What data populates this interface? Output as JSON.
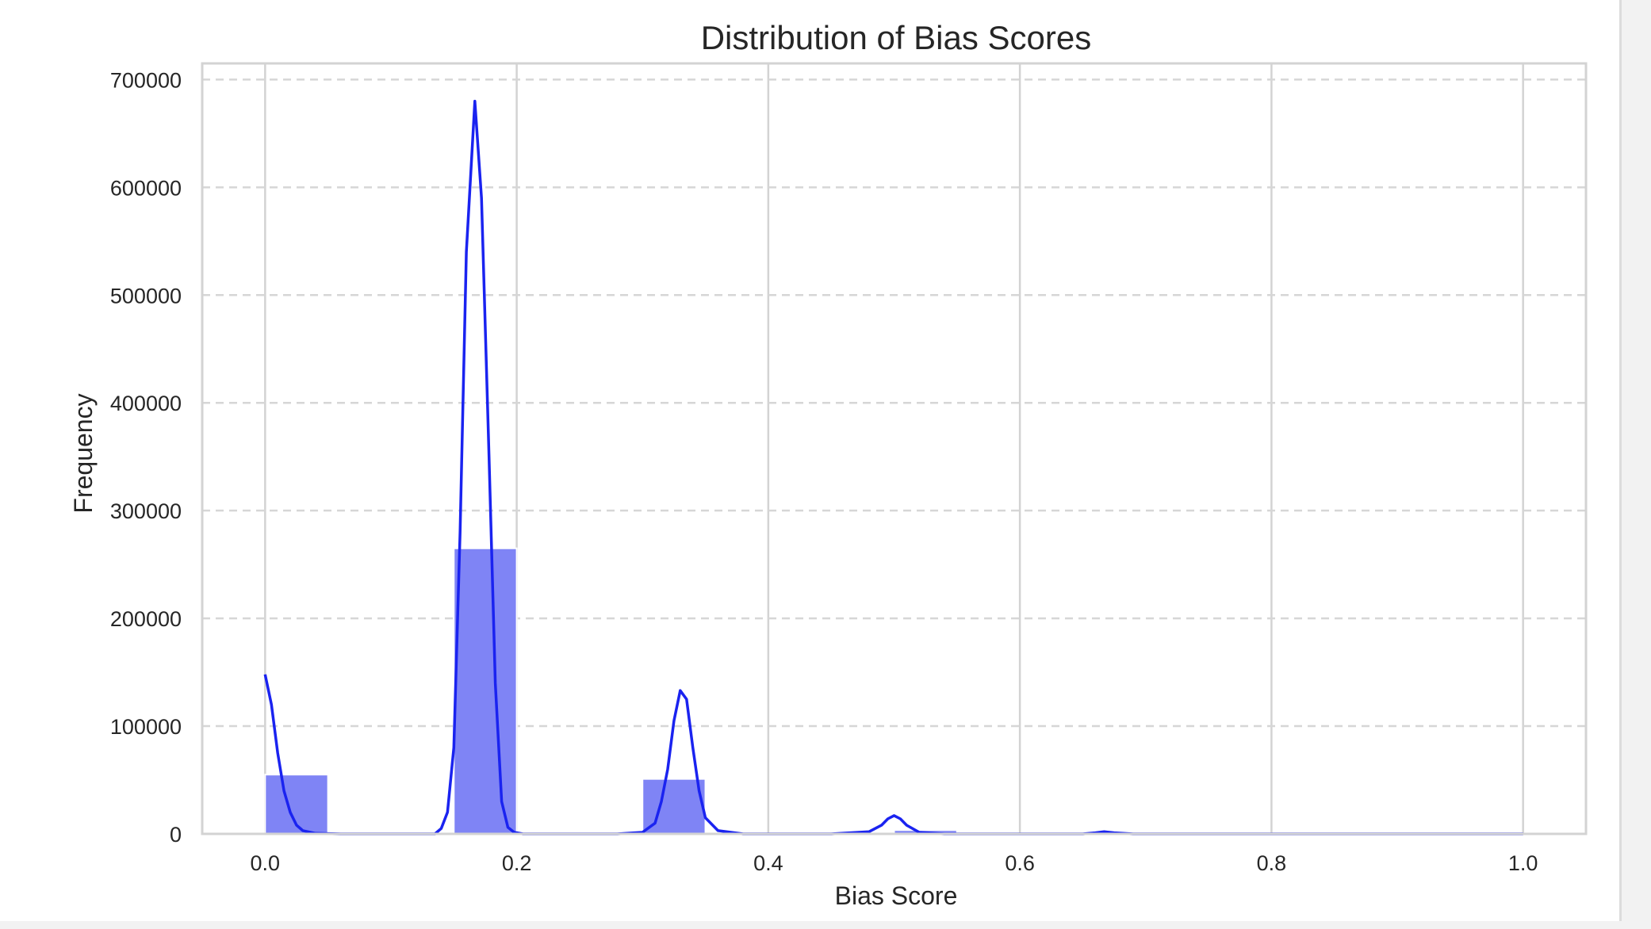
{
  "chart_data": {
    "type": "bar",
    "title": "Distribution of Bias Scores",
    "xlabel": "Bias Score",
    "ylabel": "Frequency",
    "xlim": [
      -0.05,
      1.05
    ],
    "ylim": [
      0,
      715000
    ],
    "x_ticks": [
      "0.0",
      "0.2",
      "0.4",
      "0.6",
      "0.8",
      "1.0"
    ],
    "x_tick_values": [
      0.0,
      0.2,
      0.4,
      0.6,
      0.8,
      1.0
    ],
    "y_ticks": [
      "0",
      "100000",
      "200000",
      "300000",
      "400000",
      "500000",
      "600000",
      "700000"
    ],
    "y_tick_values": [
      0,
      100000,
      200000,
      300000,
      400000,
      500000,
      600000,
      700000
    ],
    "grid": {
      "x": "solid",
      "y": "dashed"
    },
    "bar_color": "#7f84f5",
    "kde_color": "#1a23f0",
    "bins": [
      {
        "x0": 0.0,
        "x1": 0.05,
        "value": 55000
      },
      {
        "x0": 0.05,
        "x1": 0.1,
        "value": 0
      },
      {
        "x0": 0.1,
        "x1": 0.15,
        "value": 0
      },
      {
        "x0": 0.15,
        "x1": 0.2,
        "value": 265000
      },
      {
        "x0": 0.2,
        "x1": 0.25,
        "value": 0
      },
      {
        "x0": 0.25,
        "x1": 0.3,
        "value": 0
      },
      {
        "x0": 0.3,
        "x1": 0.35,
        "value": 51000
      },
      {
        "x0": 0.35,
        "x1": 0.4,
        "value": 0
      },
      {
        "x0": 0.4,
        "x1": 0.45,
        "value": 0
      },
      {
        "x0": 0.45,
        "x1": 0.5,
        "value": 0
      },
      {
        "x0": 0.5,
        "x1": 0.55,
        "value": 3500
      },
      {
        "x0": 0.55,
        "x1": 0.6,
        "value": 0
      },
      {
        "x0": 0.6,
        "x1": 0.65,
        "value": 0
      },
      {
        "x0": 0.65,
        "x1": 0.7,
        "value": 700
      },
      {
        "x0": 0.7,
        "x1": 0.75,
        "value": 0
      },
      {
        "x0": 0.75,
        "x1": 0.8,
        "value": 0
      },
      {
        "x0": 0.8,
        "x1": 0.85,
        "value": 0
      },
      {
        "x0": 0.85,
        "x1": 0.9,
        "value": 0
      },
      {
        "x0": 0.9,
        "x1": 0.95,
        "value": 0
      },
      {
        "x0": 0.95,
        "x1": 1.0,
        "value": 200
      }
    ],
    "kde_curve": {
      "x": [
        0.0,
        0.005,
        0.01,
        0.015,
        0.02,
        0.025,
        0.03,
        0.04,
        0.06,
        0.1,
        0.135,
        0.14,
        0.145,
        0.15,
        0.155,
        0.16,
        0.1667,
        0.172,
        0.178,
        0.183,
        0.188,
        0.193,
        0.198,
        0.205,
        0.22,
        0.28,
        0.3,
        0.31,
        0.315,
        0.32,
        0.325,
        0.33,
        0.335,
        0.34,
        0.345,
        0.35,
        0.36,
        0.38,
        0.45,
        0.48,
        0.49,
        0.495,
        0.5,
        0.505,
        0.51,
        0.52,
        0.54,
        0.6,
        0.65,
        0.66,
        0.667,
        0.675,
        0.69,
        0.75,
        1.0
      ],
      "y": [
        148000,
        120000,
        75000,
        40000,
        20000,
        8000,
        3000,
        500,
        0,
        0,
        0,
        5000,
        20000,
        80000,
        280000,
        540000,
        680000,
        590000,
        350000,
        140000,
        30000,
        6000,
        1500,
        0,
        0,
        0,
        1500,
        10000,
        30000,
        60000,
        105000,
        133000,
        125000,
        80000,
        40000,
        15000,
        3000,
        0,
        0,
        2000,
        8000,
        14000,
        17000,
        14000,
        8000,
        1500,
        0,
        0,
        0,
        1000,
        2000,
        1000,
        0,
        0,
        0
      ]
    }
  }
}
